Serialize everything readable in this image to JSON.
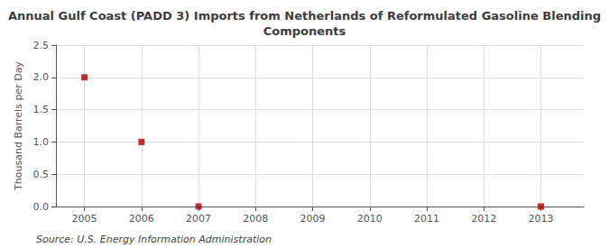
{
  "chart_data": {
    "type": "scatter",
    "title": "Annual Gulf Coast (PADD 3) Imports from Netherlands of Reformulated Gasoline Blending\nComponents",
    "ylabel": "Thousand Barrels per Day",
    "annotations": [
      "Source: U.S. Energy Information Administration"
    ],
    "x": [
      2005,
      2006,
      2007,
      2013
    ],
    "values": [
      2.0,
      1.0,
      0.0,
      0.0
    ],
    "color": "#aa0000",
    "marker": "square",
    "xlim": [
      2004.5,
      2013.75
    ],
    "xticks": [
      2005,
      2006,
      2007,
      2008,
      2009,
      2010,
      2011,
      2012,
      2013
    ],
    "ylim": [
      0.0,
      2.5
    ],
    "yticks": [
      {
        "value": 0.0,
        "label": "0.0"
      },
      0.5,
      {
        "value": 1.0,
        "label": "1.0"
      },
      1.5,
      {
        "value": 2.0,
        "label": "2.0"
      },
      2.5
    ],
    "grid": true
  }
}
